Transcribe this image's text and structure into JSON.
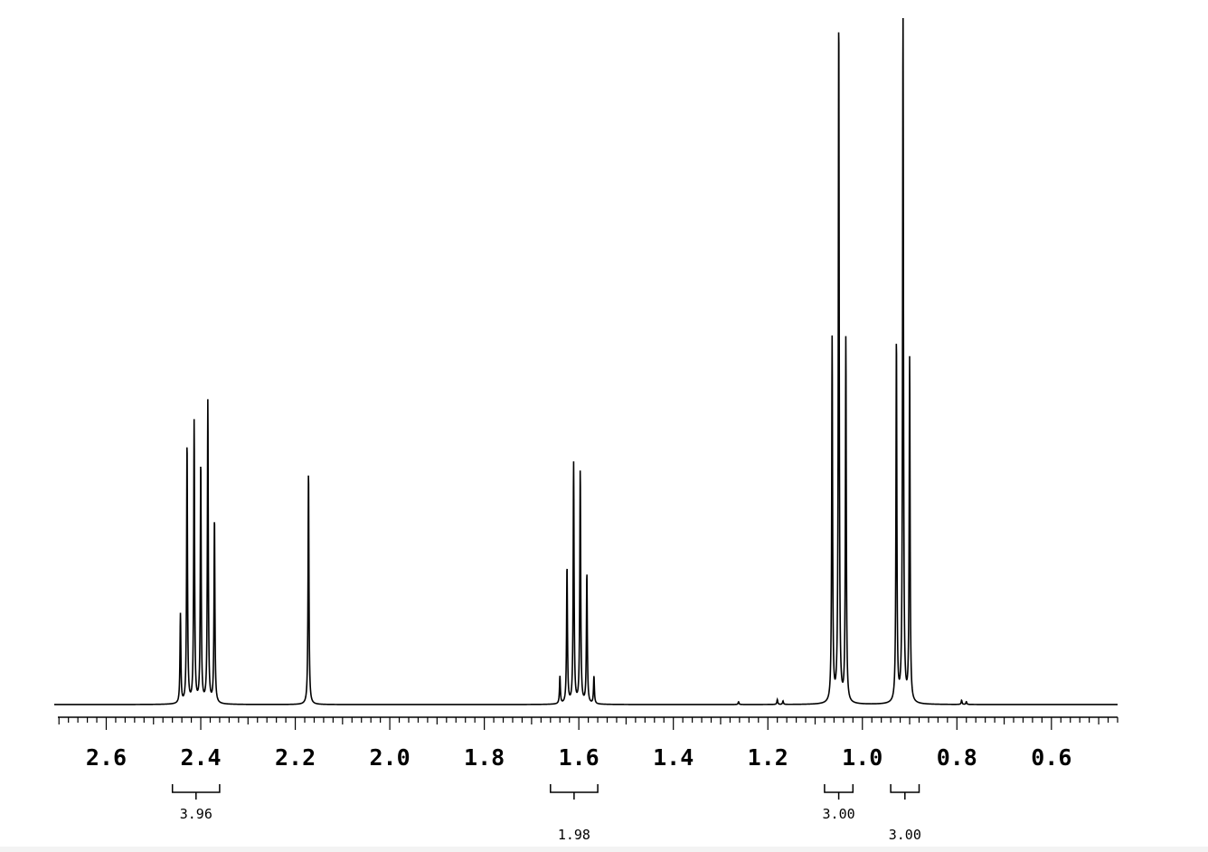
{
  "chart_data": {
    "type": "line",
    "title": "",
    "xlabel": "",
    "ylabel": "",
    "x_reversed": true,
    "xlim": [
      2.71,
      0.46
    ],
    "ylim": [
      0,
      1.0
    ],
    "grid": false,
    "ticks": [
      "2.6",
      "2.4",
      "2.2",
      "2.0",
      "1.8",
      "1.6",
      "1.4",
      "1.2",
      "1.0",
      "0.8",
      "0.6"
    ],
    "tick_values": [
      2.6,
      2.4,
      2.2,
      2.0,
      1.8,
      1.6,
      1.4,
      1.2,
      1.0,
      0.8,
      0.6
    ],
    "minor_tick_step": 0.02,
    "peaks": [
      {
        "ppm": 2.443,
        "height": 0.13
      },
      {
        "ppm": 2.429,
        "height": 0.38
      },
      {
        "ppm": 2.414,
        "height": 0.41
      },
      {
        "ppm": 2.4,
        "height": 0.35
      },
      {
        "ppm": 2.385,
        "height": 0.44
      },
      {
        "ppm": 2.371,
        "height": 0.27
      },
      {
        "ppm": 2.172,
        "height": 0.34
      },
      {
        "ppm": 1.64,
        "height": 0.04
      },
      {
        "ppm": 1.625,
        "height": 0.2
      },
      {
        "ppm": 1.611,
        "height": 0.35
      },
      {
        "ppm": 1.597,
        "height": 0.34
      },
      {
        "ppm": 1.583,
        "height": 0.19
      },
      {
        "ppm": 1.568,
        "height": 0.04
      },
      {
        "ppm": 1.064,
        "height": 0.53
      },
      {
        "ppm": 1.05,
        "height": 1.0
      },
      {
        "ppm": 1.035,
        "height": 0.53
      },
      {
        "ppm": 0.928,
        "height": 0.53
      },
      {
        "ppm": 0.914,
        "height": 1.0
      },
      {
        "ppm": 0.9,
        "height": 0.5
      },
      {
        "ppm": 1.262,
        "height": 0.004
      },
      {
        "ppm": 1.18,
        "height": 0.007
      },
      {
        "ppm": 1.168,
        "height": 0.005
      },
      {
        "ppm": 0.79,
        "height": 0.006
      },
      {
        "ppm": 0.78,
        "height": 0.004
      }
    ],
    "integrals": [
      {
        "from": 2.46,
        "to": 2.36,
        "value": "3.96",
        "label_row": 1
      },
      {
        "from": 1.66,
        "to": 1.56,
        "value": "1.98",
        "label_row": 2
      },
      {
        "from": 1.08,
        "to": 1.02,
        "value": "3.00",
        "label_row": 1
      },
      {
        "from": 0.94,
        "to": 0.88,
        "value": "3.00",
        "label_row": 2
      }
    ]
  }
}
